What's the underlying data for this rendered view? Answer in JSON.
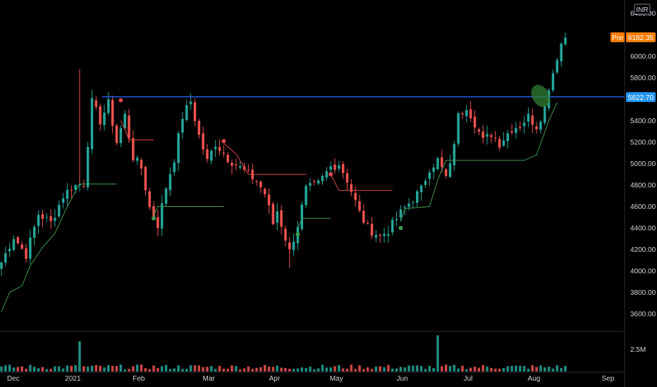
{
  "currency_badge": "INR",
  "pre_label": "Pre",
  "colors": {
    "up": "#26a69a",
    "down": "#ef5350",
    "background": "#000000",
    "hline": "#2962ff",
    "pre_tag": "#f57c00",
    "price_tag": "#2196f3",
    "trail_up": "#3f9b4e",
    "trail_down": "#e0474c",
    "ellipse": "#2e7d32"
  },
  "chart_data": {
    "type": "candlestick",
    "title": "",
    "y_axis": {
      "min": 3400,
      "max": 6500,
      "tick_labels": [
        "3600.00",
        "3800.00",
        "4000.00",
        "4200.00",
        "4400.00",
        "4600.00",
        "4800.00",
        "5000.00",
        "5200.00",
        "5400.00",
        "5600.00",
        "5800.00",
        "6000.00",
        "6200.00",
        "6400.00"
      ]
    },
    "x_axis": {
      "labels": [
        "Dec",
        "2021",
        "Feb",
        "Mar",
        "Apr",
        "May",
        "Jun",
        "Jul",
        "Aug",
        "Sep"
      ]
    },
    "volume_axis": {
      "tick_label": "2.5M"
    },
    "horizontal_line": {
      "value": 5622.7,
      "label": "5622.70"
    },
    "pre_market_price": {
      "value": 6182.35,
      "label": "6182.35"
    },
    "price_path": [
      [
        0,
        4080
      ],
      [
        3,
        4320
      ],
      [
        6,
        4150
      ],
      [
        9,
        4530
      ],
      [
        12,
        4450
      ],
      [
        15,
        4700
      ],
      [
        17,
        4780
      ],
      [
        20,
        4820
      ],
      [
        22,
        5570
      ],
      [
        24,
        5400
      ],
      [
        26,
        5560
      ],
      [
        28,
        5200
      ],
      [
        30,
        5450
      ],
      [
        32,
        5060
      ],
      [
        34,
        4960
      ],
      [
        36,
        4590
      ],
      [
        38,
        4430
      ],
      [
        40,
        4780
      ],
      [
        42,
        5050
      ],
      [
        44,
        5440
      ],
      [
        46,
        5580
      ],
      [
        48,
        5260
      ],
      [
        50,
        5020
      ],
      [
        52,
        5190
      ],
      [
        55,
        5050
      ],
      [
        58,
        4960
      ],
      [
        62,
        4840
      ],
      [
        64,
        4720
      ],
      [
        66,
        4440
      ],
      [
        67,
        4560
      ],
      [
        70,
        4180
      ],
      [
        72,
        4430
      ],
      [
        74,
        4760
      ],
      [
        77,
        4810
      ],
      [
        80,
        4970
      ],
      [
        82,
        5000
      ],
      [
        84,
        4850
      ],
      [
        87,
        4540
      ],
      [
        89,
        4400
      ],
      [
        92,
        4320
      ],
      [
        94,
        4380
      ],
      [
        97,
        4540
      ],
      [
        99,
        4630
      ],
      [
        102,
        4760
      ],
      [
        104,
        4960
      ],
      [
        106,
        5030
      ],
      [
        108,
        4870
      ],
      [
        109,
        4970
      ],
      [
        111,
        5440
      ],
      [
        113,
        5540
      ],
      [
        115,
        5380
      ],
      [
        117,
        5210
      ],
      [
        119,
        5280
      ],
      [
        121,
        5190
      ],
      [
        124,
        5330
      ],
      [
        126,
        5360
      ],
      [
        128,
        5440
      ],
      [
        130,
        5350
      ],
      [
        132,
        5520
      ],
      [
        133,
        5720
      ],
      [
        134,
        5850
      ],
      [
        135,
        6000
      ],
      [
        136,
        6120
      ],
      [
        137,
        6182
      ]
    ],
    "volume_spikes": {
      "19": 4.2,
      "106": 3.3
    },
    "trail_stop": [
      {
        "color": "up",
        "points": [
          [
            0,
            3620
          ],
          [
            2,
            3800
          ],
          [
            5,
            3860
          ],
          [
            7,
            4050
          ],
          [
            10,
            4220
          ],
          [
            13,
            4350
          ],
          [
            16,
            4600
          ],
          [
            19,
            4810
          ],
          [
            28,
            4810
          ]
        ],
        "dot": null
      },
      {
        "color": "down",
        "points": [
          [
            29,
            5400
          ],
          [
            30,
            5320
          ],
          [
            31,
            5220
          ],
          [
            37,
            5220
          ]
        ],
        "dot": {
          "i": 29,
          "v": 5590
        }
      },
      {
        "color": "up",
        "points": [
          [
            37,
            4520
          ],
          [
            38,
            4600
          ],
          [
            54,
            4600
          ]
        ],
        "dot": {
          "i": 37,
          "v": 4490
        }
      },
      {
        "color": "down",
        "points": [
          [
            54,
            5190
          ],
          [
            57,
            5090
          ],
          [
            60,
            4900
          ],
          [
            74,
            4900
          ]
        ],
        "dot": {
          "i": 54,
          "v": 5210
        }
      },
      {
        "color": "up",
        "points": [
          [
            72,
            4390
          ],
          [
            73,
            4490
          ],
          [
            80,
            4490
          ]
        ],
        "dot": {
          "i": 72,
          "v": 4340
        }
      },
      {
        "color": "down",
        "points": [
          [
            80,
            4900
          ],
          [
            82,
            4750
          ],
          [
            95,
            4750
          ]
        ],
        "dot": {
          "i": 80,
          "v": 4900
        }
      },
      {
        "color": "up",
        "points": [
          [
            97,
            4460
          ],
          [
            98,
            4580
          ],
          [
            104,
            4600
          ],
          [
            106,
            4850
          ],
          [
            108,
            5030
          ],
          [
            127,
            5030
          ],
          [
            130,
            5080
          ],
          [
            133,
            5400
          ],
          [
            135,
            5570
          ]
        ],
        "dot": {
          "i": 97,
          "v": 4400
        }
      }
    ],
    "breakout_marker": {
      "i": 131,
      "v": 5630
    }
  }
}
